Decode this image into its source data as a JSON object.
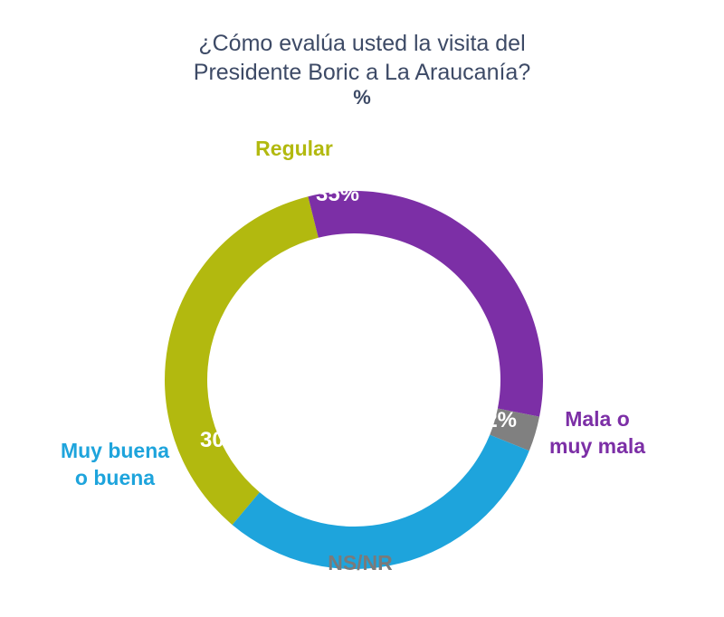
{
  "chart_data": {
    "type": "pie",
    "title_line1": "¿Cómo evalúa usted la visita del",
    "title_line2": "Presidente Boric a La Araucanía?",
    "unit": "%",
    "donut": true,
    "slices": [
      {
        "category": "Regular",
        "value": 35,
        "value_label": "35%",
        "color": "#b2b90f",
        "label_color": "#b2b90f",
        "label_lines": [
          "Regular"
        ]
      },
      {
        "category": "Mala o muy mala",
        "value": 32,
        "value_label": "32%",
        "color": "#7c2fa6",
        "label_color": "#7c2fa6",
        "label_lines": [
          "Mala o",
          "muy mala"
        ]
      },
      {
        "category": "NS/NR",
        "value": 3,
        "value_label": "3%",
        "color": "#808080",
        "label_color": "#7a7a7a",
        "label_lines": [
          "NS/NR"
        ]
      },
      {
        "category": "Muy buena o buena",
        "value": 30,
        "value_label": "30%",
        "color": "#1ea4dc",
        "label_color": "#1ea4dc",
        "label_lines": [
          "Muy buena",
          "o buena"
        ]
      }
    ]
  }
}
